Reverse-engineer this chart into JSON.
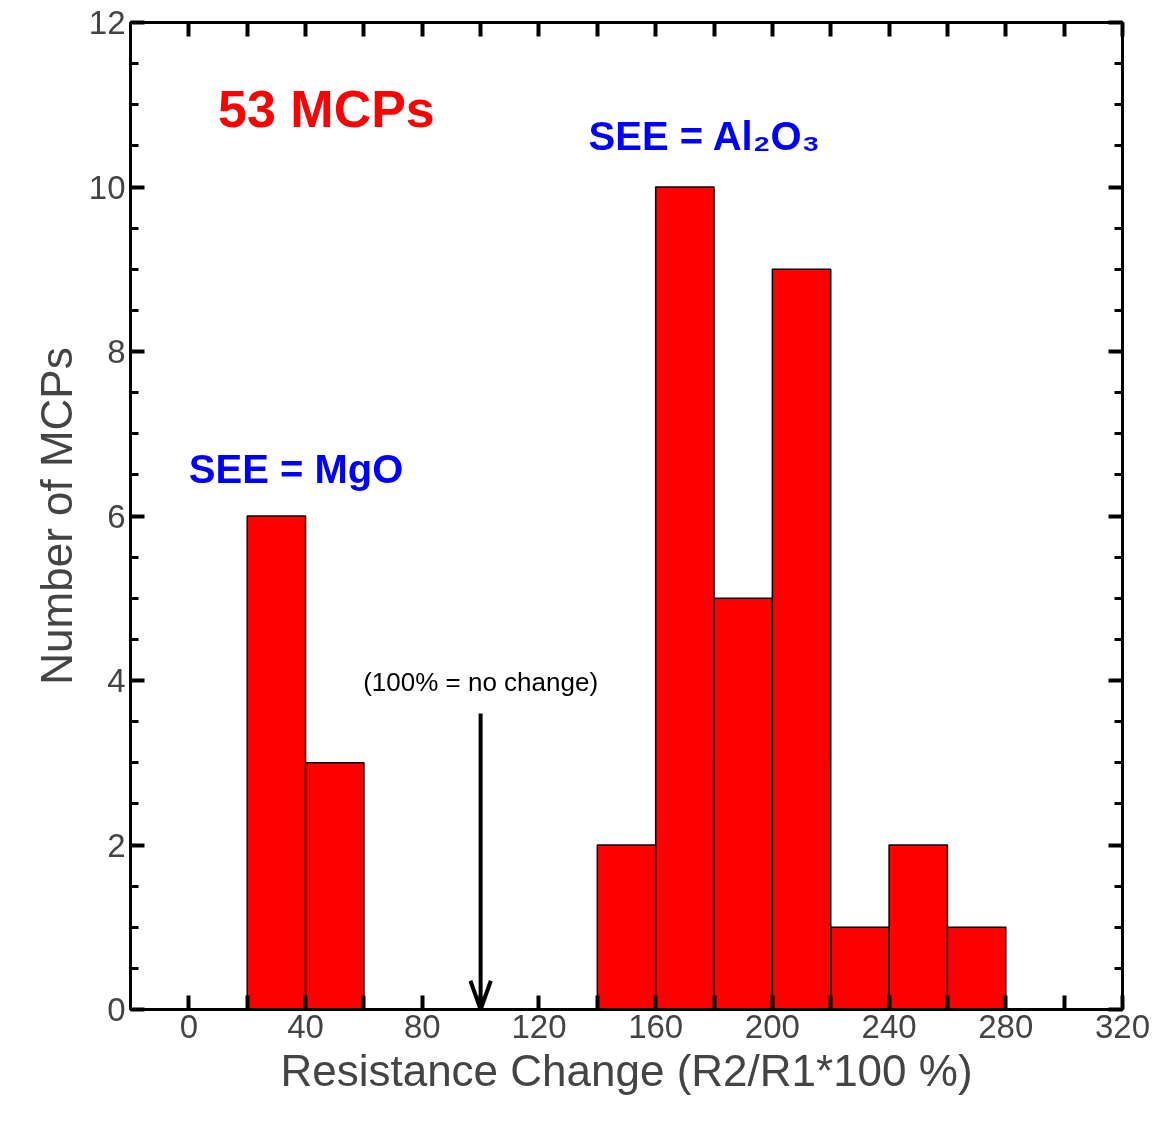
{
  "chart_data": {
    "type": "histogram",
    "xlabel": "Resistance Change (R2/R1*100 %)",
    "ylabel": "Number of MCPs",
    "bins": [
      20,
      40,
      60,
      80,
      100,
      120,
      140,
      160,
      180,
      200,
      220,
      240,
      260,
      280
    ],
    "values": [
      6,
      3,
      0,
      0,
      0,
      0,
      2,
      10,
      5,
      9,
      1,
      2,
      1
    ],
    "color": "#ff0000",
    "xlim": [
      -20,
      320
    ],
    "ylim": [
      0,
      12
    ],
    "xticks": [
      0,
      {
        "value": 20,
        "label": null
      },
      40,
      {
        "value": 60,
        "label": null
      },
      80,
      {
        "value": 100,
        "label": null
      },
      120,
      {
        "value": 140,
        "label": null
      },
      160,
      {
        "value": 180,
        "label": null
      },
      200,
      {
        "value": 220,
        "label": null
      },
      240,
      {
        "value": 260,
        "label": null
      },
      280,
      {
        "value": 300,
        "label": null
      },
      320
    ],
    "yticks": [
      0,
      {
        "value": 0.5,
        "label": null
      },
      {
        "value": 1,
        "label": null
      },
      {
        "value": 1.5,
        "label": null
      },
      2,
      {
        "value": 2.5,
        "label": null
      },
      {
        "value": 3,
        "label": null
      },
      {
        "value": 3.5,
        "label": null
      },
      4,
      {
        "value": 4.5,
        "label": null
      },
      {
        "value": 5,
        "label": null
      },
      {
        "value": 5.5,
        "label": null
      },
      6,
      {
        "value": 6.5,
        "label": null
      },
      {
        "value": 7,
        "label": null
      },
      {
        "value": 7.5,
        "label": null
      },
      8,
      {
        "value": 8.5,
        "label": null
      },
      {
        "value": 9,
        "label": null
      },
      {
        "value": 9.5,
        "label": null
      },
      10,
      {
        "value": 10.5,
        "label": null
      },
      {
        "value": 11,
        "label": null
      },
      {
        "value": 11.5,
        "label": null
      },
      12
    ],
    "grid": false,
    "annotations": [
      "53 MCPs",
      "SEE = MgO",
      "SEE = Al₂O₃"
    ],
    "ref_lines": [
      {
        "axis": "x",
        "value": 100,
        "label": "(100% = no change)",
        "color": "#000000"
      }
    ]
  }
}
